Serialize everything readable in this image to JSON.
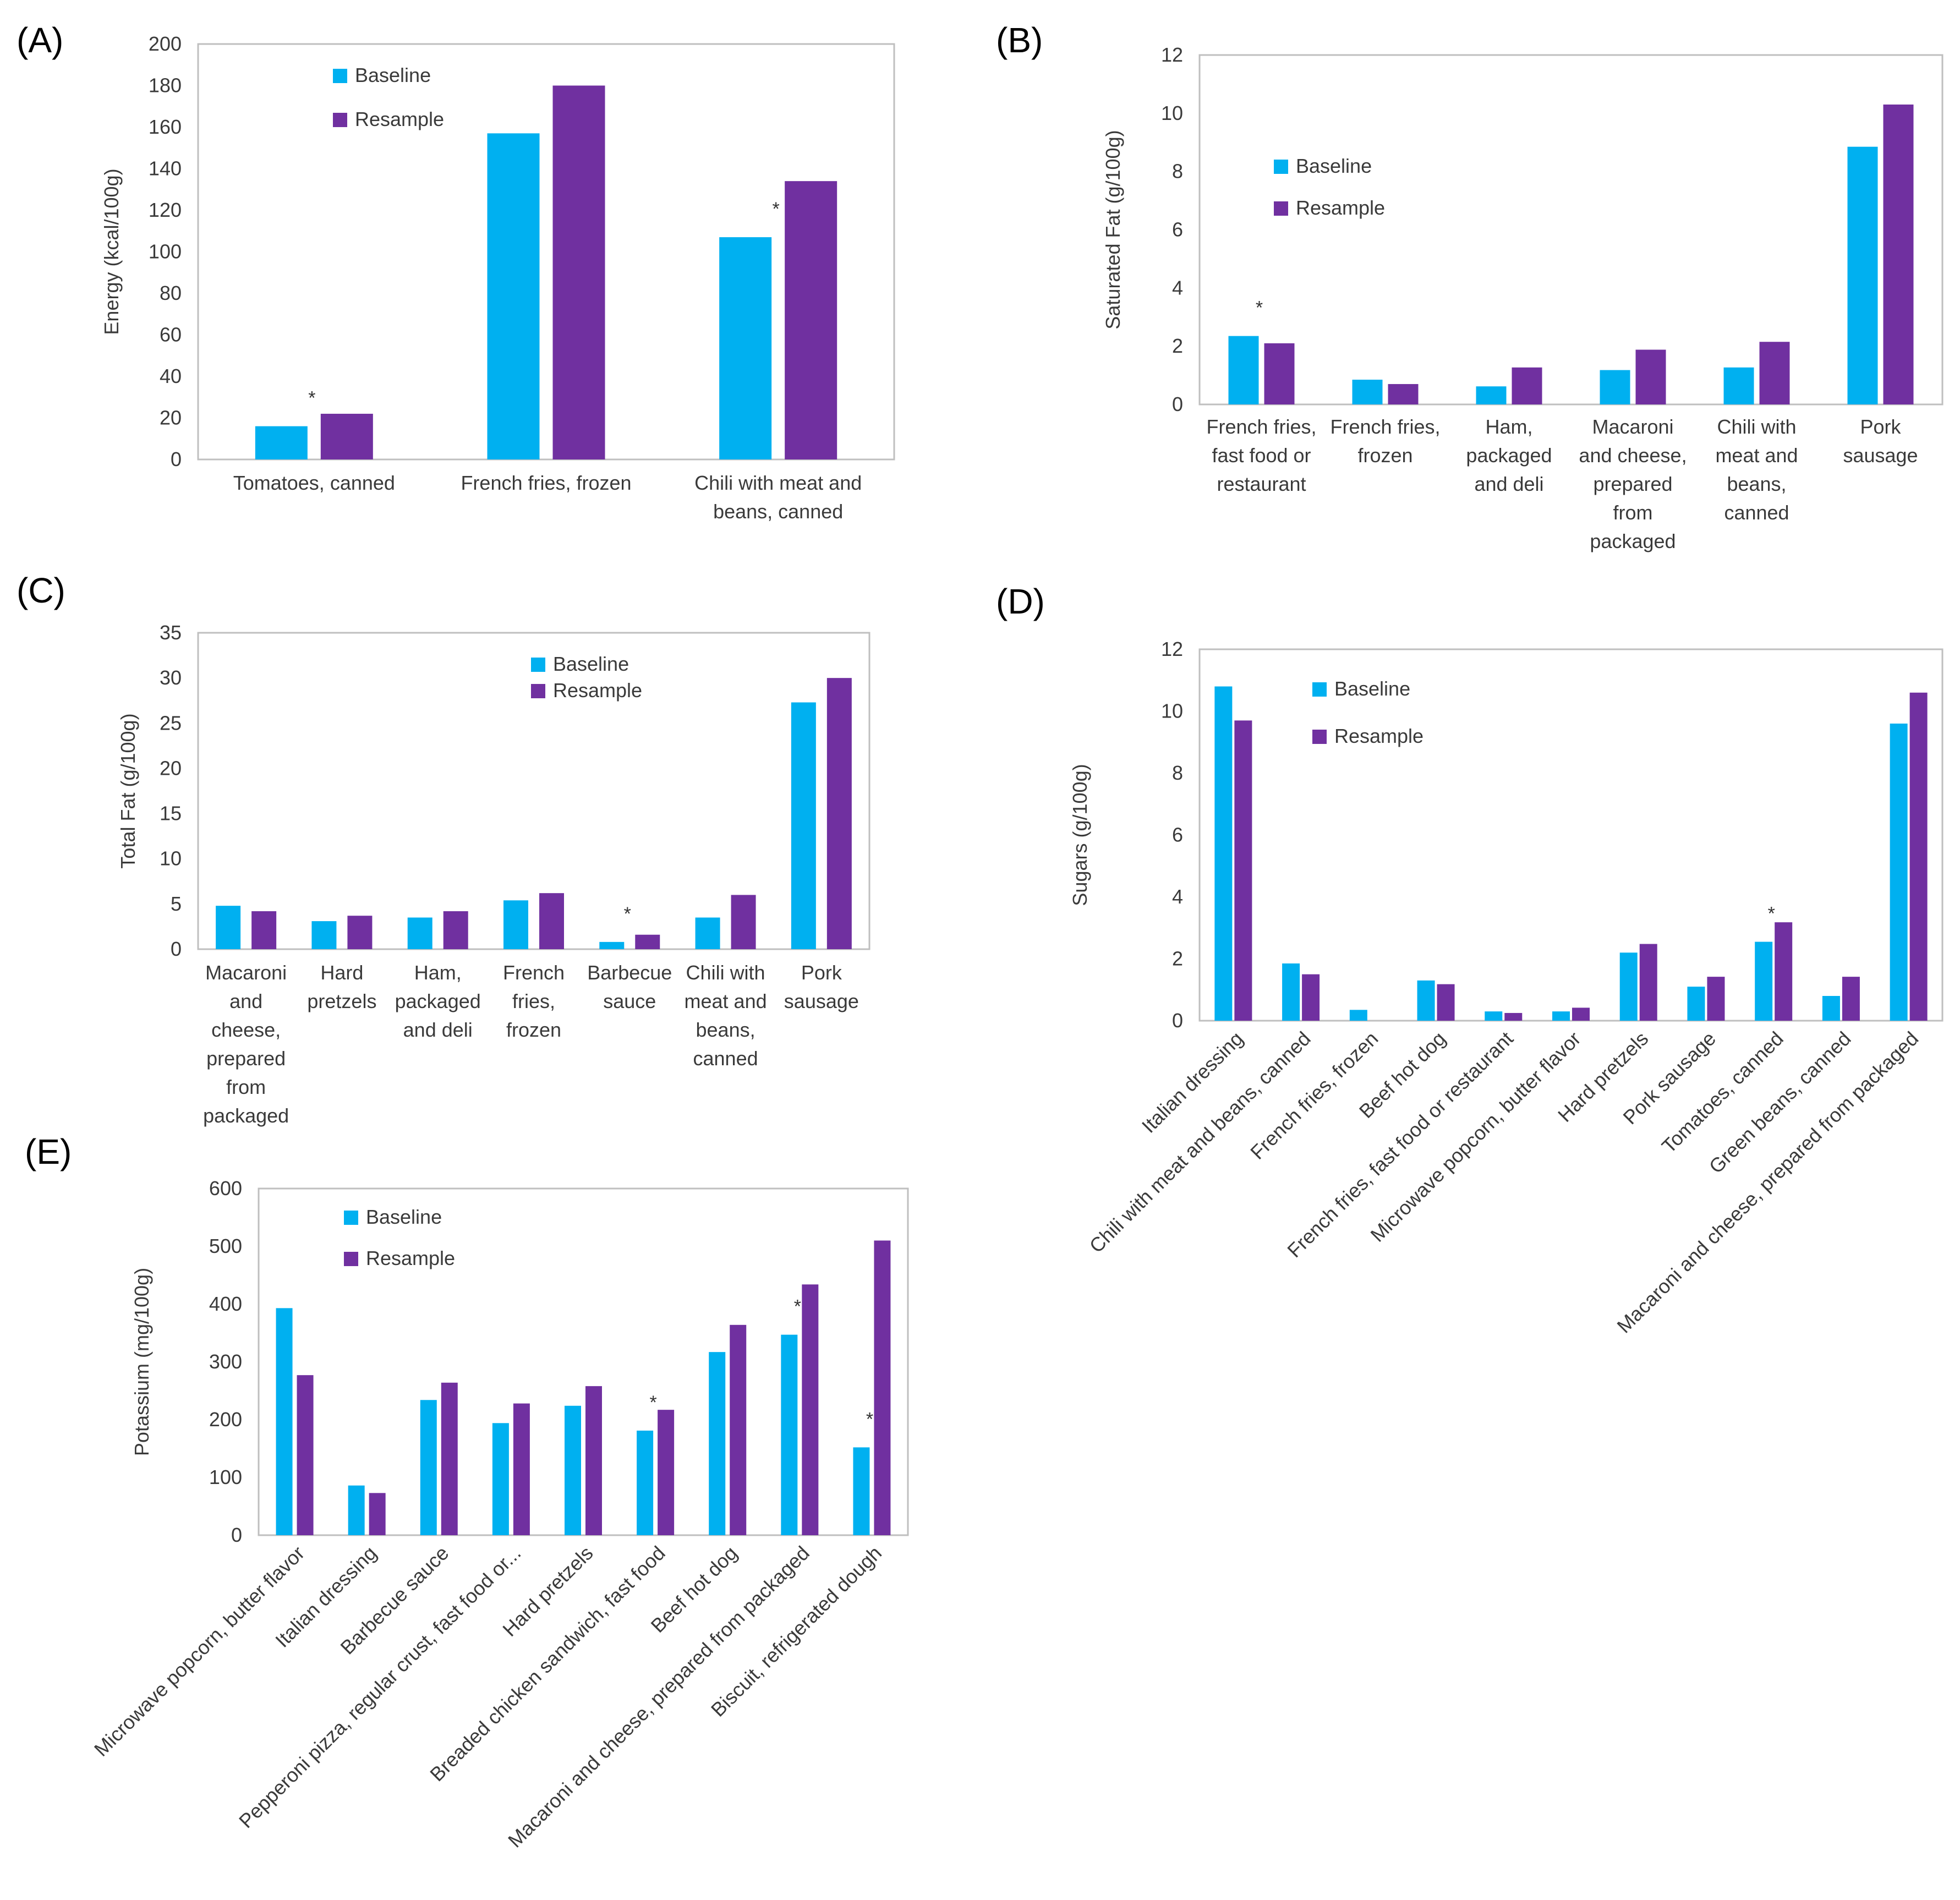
{
  "colors": {
    "baseline": "#00b0f0",
    "resample": "#7030a0",
    "frame": "#bfbfbf"
  },
  "chart_data": [
    {
      "id": "A",
      "panel_label": "(A)",
      "type": "bar",
      "ylabel": "Energy (kcal/100g)",
      "ylim": [
        0,
        200
      ],
      "yticks": [
        0,
        20,
        40,
        60,
        80,
        100,
        120,
        140,
        160,
        180,
        200
      ],
      "categories": [
        "Tomatoes, canned",
        "French fries, frozen",
        "Chili with meat and beans, canned"
      ],
      "cat_lines": [
        [
          "Tomatoes, canned"
        ],
        [
          "French fries, frozen"
        ],
        [
          "Chili with meat and",
          "beans, canned"
        ]
      ],
      "series": [
        {
          "name": "Baseline",
          "values": [
            16,
            157,
            107
          ]
        },
        {
          "name": "Resample",
          "values": [
            22,
            180,
            134
          ]
        }
      ],
      "significant": [
        true,
        false,
        true
      ],
      "significance_mark": "*",
      "legend": "top-left"
    },
    {
      "id": "B",
      "panel_label": "(B)",
      "type": "bar",
      "ylabel": "Saturated Fat (g/100g)",
      "ylim": [
        0,
        12
      ],
      "yticks": [
        0,
        2,
        4,
        6,
        8,
        10,
        12
      ],
      "categories": [
        "French fries, fast food or restaurant",
        "French fries, frozen",
        "Ham, packaged and deli",
        "Macaroni and cheese, prepared from packaged",
        "Chili with meat and beans, canned",
        "Pork sausage"
      ],
      "cat_lines": [
        [
          "French fries,",
          "fast food or",
          "restaurant"
        ],
        [
          "French fries,",
          "frozen"
        ],
        [
          "Ham,",
          "packaged",
          "and deli"
        ],
        [
          "Macaroni",
          "and cheese,",
          "prepared",
          "from",
          "packaged"
        ],
        [
          "Chili with",
          "meat and",
          "beans,",
          "canned"
        ],
        [
          "Pork",
          "sausage"
        ]
      ],
      "series": [
        {
          "name": "Baseline",
          "values": [
            2.35,
            0.85,
            0.62,
            1.18,
            1.27,
            8.85
          ]
        },
        {
          "name": "Resample",
          "values": [
            2.1,
            0.7,
            1.27,
            1.88,
            2.15,
            10.3
          ]
        }
      ],
      "significant": [
        true,
        false,
        false,
        false,
        false,
        false
      ],
      "significance_mark": "*",
      "legend": "left"
    },
    {
      "id": "C",
      "panel_label": "(C)",
      "type": "bar",
      "ylabel": "Total Fat (g/100g)",
      "ylim": [
        0,
        35
      ],
      "yticks": [
        0,
        5,
        10,
        15,
        20,
        25,
        30,
        35
      ],
      "categories": [
        "Macaroni and cheese, prepared from packaged",
        "Hard pretzels",
        "Ham, packaged and deli",
        "French fries, frozen",
        "Barbecue sauce",
        "Chili with meat and beans, canned",
        "Pork sausage"
      ],
      "cat_lines": [
        [
          "Macaroni",
          "and",
          "cheese,",
          "prepared",
          "from",
          "packaged"
        ],
        [
          "Hard",
          "pretzels"
        ],
        [
          "Ham,",
          "packaged",
          "and deli"
        ],
        [
          "French",
          "fries,",
          "frozen"
        ],
        [
          "Barbecue",
          "sauce"
        ],
        [
          "Chili with",
          "meat and",
          "beans,",
          "canned"
        ],
        [
          "Pork",
          "sausage"
        ]
      ],
      "series": [
        {
          "name": "Baseline",
          "values": [
            4.8,
            3.1,
            3.5,
            5.4,
            0.8,
            3.5,
            27.3
          ]
        },
        {
          "name": "Resample",
          "values": [
            4.2,
            3.7,
            4.2,
            6.2,
            1.6,
            6.0,
            30.0
          ]
        }
      ],
      "significant": [
        false,
        false,
        false,
        false,
        true,
        false,
        false
      ],
      "significance_mark": "*",
      "legend": "top-center"
    },
    {
      "id": "D",
      "panel_label": "(D)",
      "type": "bar",
      "ylabel": "Sugars (g/100g)",
      "ylim": [
        0,
        12
      ],
      "yticks": [
        0,
        2,
        4,
        6,
        8,
        10,
        12
      ],
      "categories": [
        "Italian dressing",
        "Chili with meat and beans, canned",
        "French fries, frozen",
        "Beef hot dog",
        "French fries, fast food or restaurant",
        "Microwave popcorn, butter flavor",
        "Hard pretzels",
        "Pork sausage",
        "Tomatoes, canned",
        "Green beans, canned",
        "Macaroni and cheese, prepared from packaged"
      ],
      "series": [
        {
          "name": "Baseline",
          "values": [
            10.8,
            1.85,
            0.35,
            1.3,
            0.3,
            0.3,
            2.2,
            1.1,
            2.55,
            0.8,
            9.6
          ]
        },
        {
          "name": "Resample",
          "values": [
            9.7,
            1.5,
            0,
            1.18,
            0.25,
            0.42,
            2.48,
            1.42,
            3.18,
            1.42,
            10.6
          ]
        }
      ],
      "significant": [
        false,
        false,
        false,
        false,
        false,
        false,
        false,
        false,
        true,
        false,
        false
      ],
      "significance_mark": "*",
      "legend": "top-left"
    },
    {
      "id": "E",
      "panel_label": "(E)",
      "type": "bar",
      "ylabel": "Potassium (mg/100g)",
      "ylim": [
        0,
        600
      ],
      "yticks": [
        0,
        100,
        200,
        300,
        400,
        500,
        600
      ],
      "categories": [
        "Microwave popcorn, butter flavor",
        "Italian dressing",
        "Barbecue sauce",
        "Pepperoni pizza, regular crust, fast food or...",
        "Hard pretzels",
        "Breaded chicken sandwich, fast food",
        "Beef hot dog",
        "Macaroni and cheese, prepared from packaged",
        "Biscuit, refrigerated dough"
      ],
      "series": [
        {
          "name": "Baseline",
          "values": [
            393,
            86,
            234,
            194,
            224,
            181,
            317,
            347,
            152
          ]
        },
        {
          "name": "Resample",
          "values": [
            277,
            73,
            264,
            228,
            258,
            217,
            364,
            434,
            510
          ]
        }
      ],
      "significant": [
        false,
        false,
        false,
        false,
        false,
        true,
        false,
        true,
        true
      ],
      "significance_mark": "*",
      "legend": "top-left"
    }
  ]
}
